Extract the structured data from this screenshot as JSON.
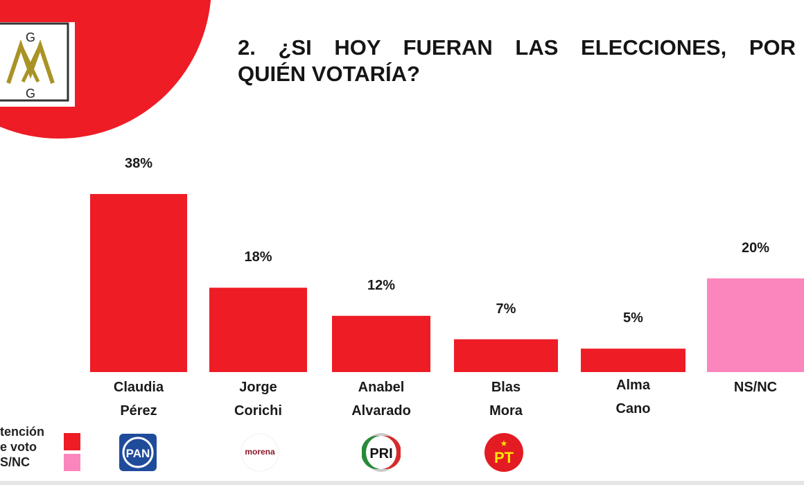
{
  "title": {
    "line1": "2. ¿SI HOY FUERAN LAS ELECCIONES, POR",
    "line2": "QUIÉN VOTARÍA?"
  },
  "logo": {
    "text_top": "G",
    "text_mid": "M",
    "text_bottom": "G"
  },
  "chart_data": {
    "type": "bar",
    "title": "2. ¿SI HOY FUERAN LAS ELECCIONES, POR QUIÉN VOTARÍA?",
    "categories": [
      [
        "Claudia",
        "Pérez"
      ],
      [
        "Jorge",
        "Corichi"
      ],
      [
        "Anabel",
        "Alvarado"
      ],
      [
        "Blas",
        "Mora"
      ],
      [
        "Alma",
        "Cano"
      ],
      [
        "NS/NC",
        ""
      ]
    ],
    "values": [
      38,
      18,
      12,
      7,
      5,
      20
    ],
    "data_labels": [
      "38%",
      "18%",
      "12%",
      "7%",
      "5%",
      "20%"
    ],
    "unit": "%",
    "colors": [
      "#ee1c25",
      "#ee1c25",
      "#ee1c25",
      "#ee1c25",
      "#ee1c25",
      "#fb86bd"
    ],
    "ylim": [
      0,
      38
    ],
    "grid": false,
    "legend": {
      "placement": "bottom-left",
      "entries": [
        {
          "lines": [
            "tención",
            "e voto"
          ],
          "color": "#ee1c25"
        },
        {
          "lines": [
            "S/NC"
          ],
          "color": "#fb86bd"
        }
      ]
    }
  },
  "party_logos": [
    {
      "name": "PAN",
      "text": "PAN",
      "color": "#1f4b9b"
    },
    {
      "name": "morena",
      "text": "morena",
      "color": "#8b1a2b"
    },
    {
      "name": "PRI",
      "text": "PRI",
      "color": "#2a8a3a"
    },
    {
      "name": "PT",
      "text": "PT",
      "color": "#e31b23"
    }
  ]
}
